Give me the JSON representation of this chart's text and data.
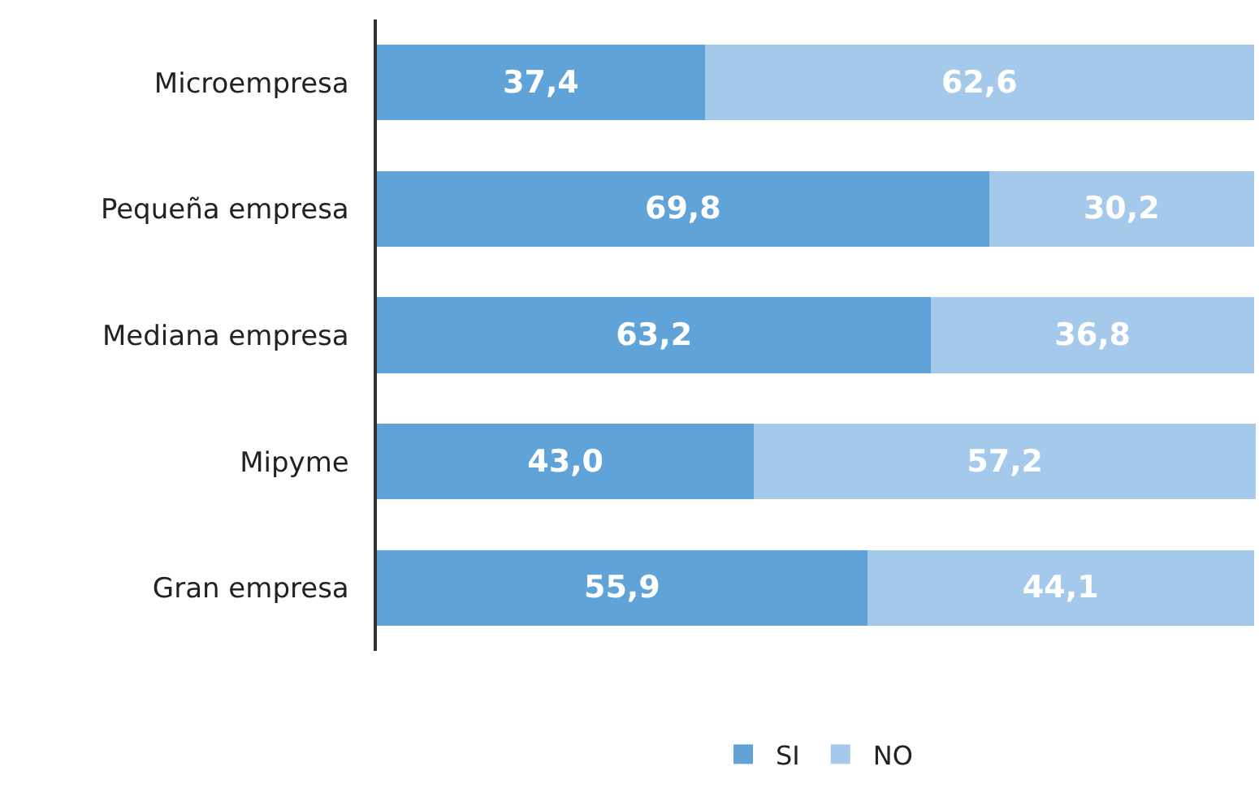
{
  "chart_data": {
    "type": "bar",
    "orientation": "horizontal",
    "stacked": true,
    "categories": [
      "Microempresa",
      "Pequeña empresa",
      "Mediana empresa",
      "Mipyme",
      "Gran empresa"
    ],
    "series": [
      {
        "name": "SI",
        "color": "#5fa3d8",
        "values": [
          37.4,
          69.8,
          63.2,
          43.0,
          55.9
        ],
        "value_labels": [
          "37,4",
          "69,8",
          "63,2",
          "43,0",
          "55,9"
        ]
      },
      {
        "name": "NO",
        "color": "#a4c9ea",
        "values": [
          62.6,
          30.2,
          36.8,
          57.2,
          44.1
        ],
        "value_labels": [
          "62,6",
          "30,2",
          "36,8",
          "57,2",
          "44,1"
        ]
      }
    ],
    "xlim": [
      0,
      100.2
    ],
    "tick_labels": "y",
    "legend": "bottom"
  }
}
